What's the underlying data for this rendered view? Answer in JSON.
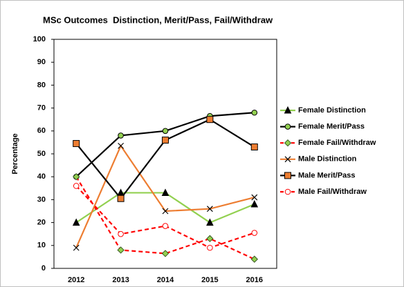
{
  "chart_data": {
    "type": "line",
    "title": "MSc Outcomes  Distinction, Merit/Pass, Fail/Withdraw",
    "y_label": "Percentage",
    "categories": [
      "2012",
      "2013",
      "2014",
      "2015",
      "2016"
    ],
    "ylim": [
      0,
      100
    ],
    "yticks": [
      0,
      10,
      20,
      30,
      40,
      50,
      60,
      70,
      80,
      90,
      100
    ],
    "grid": false,
    "legend": "right",
    "series": [
      {
        "name": "Female Distinction",
        "color": "#92d050",
        "dashed": false,
        "marker": "triangle",
        "marker_color": "#000000",
        "values": [
          20,
          33,
          33,
          20,
          28
        ]
      },
      {
        "name": "Female Merit/Pass",
        "color": "#000000",
        "dashed": false,
        "marker": "circle",
        "marker_color": "#92d050",
        "marker_edge": "#000000",
        "values": [
          40,
          58,
          60,
          66.5,
          68
        ]
      },
      {
        "name": "Female Fail/Withdraw",
        "color": "#ff0000",
        "dashed": true,
        "marker": "diamond",
        "marker_color": "#92d050",
        "marker_edge": "#375623",
        "values": [
          40,
          8,
          6.5,
          13,
          4
        ]
      },
      {
        "name": "Male Distinction",
        "color": "#ed7d31",
        "dashed": false,
        "marker": "x",
        "marker_color": "#000000",
        "values": [
          9,
          53.5,
          25,
          26,
          31
        ]
      },
      {
        "name": "Male Merit/Pass",
        "color": "#000000",
        "dashed": false,
        "marker": "square",
        "marker_color": "#ed7d31",
        "marker_edge": "#000000",
        "values": [
          54.5,
          30.5,
          56,
          65,
          53
        ]
      },
      {
        "name": "Male Fail/Withdraw",
        "color": "#ff0000",
        "dashed": true,
        "marker": "circle",
        "marker_color": "#ffffff",
        "marker_edge": "#ff0000",
        "values": [
          36,
          15,
          18.5,
          9,
          15.5
        ]
      }
    ]
  }
}
